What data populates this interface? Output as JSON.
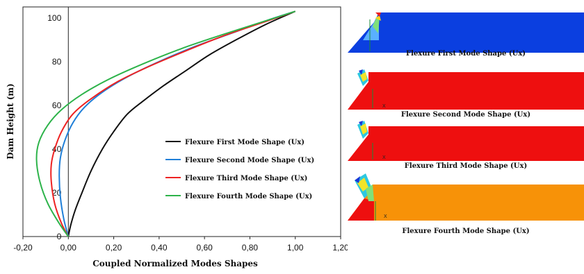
{
  "chart_data": {
    "type": "line",
    "xlabel": "Coupled Normalized Modes Shapes",
    "ylabel": "Dam Height (m)",
    "xlim": [
      -0.2,
      1.2
    ],
    "ylim": [
      0,
      105
    ],
    "x_ticks": [
      "-0,20",
      "0,00",
      "0,20",
      "0,40",
      "0,60",
      "0,80",
      "1,00",
      "1,20"
    ],
    "x_tick_values": [
      -0.2,
      0.0,
      0.2,
      0.4,
      0.6,
      0.8,
      1.0,
      1.2
    ],
    "y_ticks": [
      "0",
      "20",
      "40",
      "60",
      "80",
      "100"
    ],
    "y_tick_values": [
      0,
      20,
      40,
      60,
      80,
      100
    ],
    "legend_position": "center-right",
    "series": [
      {
        "name": "Flexure First Mode Shape (Ux)",
        "color": "#111111",
        "points": [
          [
            0.0,
            0
          ],
          [
            0.01,
            5
          ],
          [
            0.03,
            12
          ],
          [
            0.06,
            20
          ],
          [
            0.1,
            30
          ],
          [
            0.15,
            40
          ],
          [
            0.2,
            48
          ],
          [
            0.26,
            56
          ],
          [
            0.33,
            62
          ],
          [
            0.42,
            69
          ],
          [
            0.52,
            76
          ],
          [
            0.62,
            83
          ],
          [
            0.74,
            90
          ],
          [
            0.87,
            97
          ],
          [
            1.0,
            103
          ]
        ]
      },
      {
        "name": "Flexure Second Mode Shape (Ux)",
        "color": "#1f7fd8",
        "points": [
          [
            0.0,
            0
          ],
          [
            -0.02,
            8
          ],
          [
            -0.035,
            18
          ],
          [
            -0.04,
            28
          ],
          [
            -0.035,
            36
          ],
          [
            -0.015,
            44
          ],
          [
            0.02,
            52
          ],
          [
            0.07,
            59
          ],
          [
            0.15,
            66
          ],
          [
            0.26,
            73
          ],
          [
            0.4,
            80
          ],
          [
            0.56,
            87
          ],
          [
            0.72,
            93
          ],
          [
            0.88,
            99
          ],
          [
            1.0,
            103
          ]
        ]
      },
      {
        "name": "Flexure Third Mode Shape (Ux)",
        "color": "#ee2222",
        "points": [
          [
            0.0,
            0
          ],
          [
            -0.03,
            6
          ],
          [
            -0.06,
            15
          ],
          [
            -0.075,
            25
          ],
          [
            -0.075,
            33
          ],
          [
            -0.06,
            40
          ],
          [
            -0.03,
            48
          ],
          [
            0.02,
            56
          ],
          [
            0.1,
            63
          ],
          [
            0.22,
            71
          ],
          [
            0.36,
            78
          ],
          [
            0.52,
            85
          ],
          [
            0.69,
            92
          ],
          [
            0.86,
            98
          ],
          [
            1.0,
            103
          ]
        ]
      },
      {
        "name": "Flexure Fourth Mode Shape (Ux)",
        "color": "#2db34a",
        "points": [
          [
            0.0,
            0
          ],
          [
            -0.04,
            6
          ],
          [
            -0.09,
            15
          ],
          [
            -0.125,
            25
          ],
          [
            -0.14,
            35
          ],
          [
            -0.13,
            43
          ],
          [
            -0.09,
            51
          ],
          [
            -0.03,
            58
          ],
          [
            0.06,
            65
          ],
          [
            0.18,
            72
          ],
          [
            0.33,
            79
          ],
          [
            0.5,
            86
          ],
          [
            0.67,
            92
          ],
          [
            0.85,
            98
          ],
          [
            1.0,
            103
          ]
        ]
      }
    ]
  },
  "mode_panels": [
    {
      "caption": "Flexure First Mode Shape (Ux)",
      "color": "#0b3fe0"
    },
    {
      "caption": "Flexure Second Mode Shape (Ux)",
      "color": "#ee0f0f"
    },
    {
      "caption": "Flexure Third Mode Shape (Ux)",
      "color": "#ee0f0f"
    },
    {
      "caption": "Flexure Fourth Mode Shape (Ux)",
      "color": "#f79208"
    }
  ]
}
